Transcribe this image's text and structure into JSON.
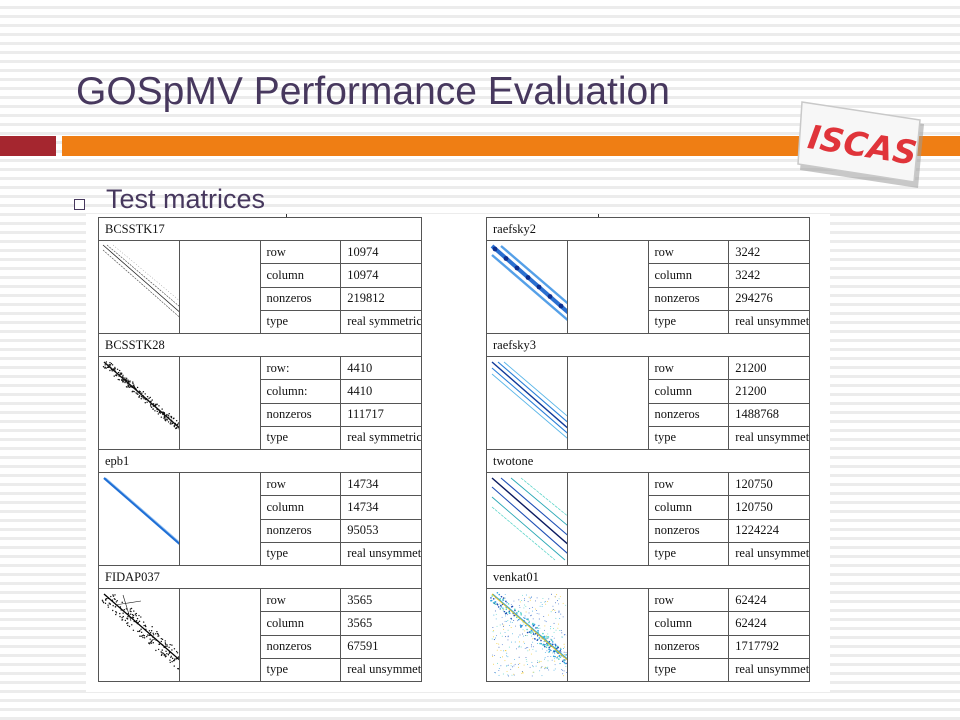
{
  "slide": {
    "title": "GOSpMV Performance Evaluation",
    "bullet": "Test matrices",
    "logo_text": "ISCAS"
  },
  "colors": {
    "title": "#47385e",
    "bar_red": "#a5262f",
    "bar_orange": "#ef7e14",
    "logo_red": "#e0343a"
  },
  "left_matrices": [
    {
      "name": "BCSSTK17",
      "pattern": "black-diagonal-band",
      "rows": [
        [
          "row",
          "10974"
        ],
        [
          "column",
          "10974"
        ],
        [
          "nonzeros",
          "219812"
        ],
        [
          "type",
          "real symmetric"
        ]
      ]
    },
    {
      "name": "BCSSTK28",
      "pattern": "black-dense-band",
      "rows": [
        [
          "row:",
          "4410"
        ],
        [
          "column:",
          "4410"
        ],
        [
          "nonzeros",
          "111717"
        ],
        [
          "type",
          "real symmetric"
        ]
      ]
    },
    {
      "name": "epb1",
      "pattern": "blue-diagonal",
      "rows": [
        [
          "row",
          "14734"
        ],
        [
          "column",
          "14734"
        ],
        [
          "nonzeros",
          "95053"
        ],
        [
          "type",
          "real unsymmetric"
        ]
      ]
    },
    {
      "name": "FIDAP037",
      "pattern": "black-scattered-band",
      "rows": [
        [
          "row",
          "3565"
        ],
        [
          "column",
          "3565"
        ],
        [
          "nonzeros",
          "67591"
        ],
        [
          "type",
          "real unsymmetric"
        ]
      ]
    }
  ],
  "right_matrices": [
    {
      "name": "raefsky2",
      "pattern": "blue-blocks-diagonal",
      "rows": [
        [
          "row",
          "3242"
        ],
        [
          "column",
          "3242"
        ],
        [
          "nonzeros",
          "294276"
        ],
        [
          "type",
          "real unsymmetric"
        ]
      ]
    },
    {
      "name": "raefsky3",
      "pattern": "blue-multi-diagonal",
      "rows": [
        [
          "row",
          "21200"
        ],
        [
          "column",
          "21200"
        ],
        [
          "nonzeros",
          "1488768"
        ],
        [
          "type",
          "real unsymmetric"
        ]
      ]
    },
    {
      "name": "twotone",
      "pattern": "multi-band-color",
      "rows": [
        [
          "row",
          "120750"
        ],
        [
          "column",
          "120750"
        ],
        [
          "nonzeros",
          "1224224"
        ],
        [
          "type",
          "real unsymmetric"
        ]
      ]
    },
    {
      "name": "venkat01",
      "pattern": "scattered-color",
      "rows": [
        [
          "row",
          "62424"
        ],
        [
          "column",
          "62424"
        ],
        [
          "nonzeros",
          "1717792"
        ],
        [
          "type",
          "real unsymmetric"
        ]
      ]
    }
  ]
}
